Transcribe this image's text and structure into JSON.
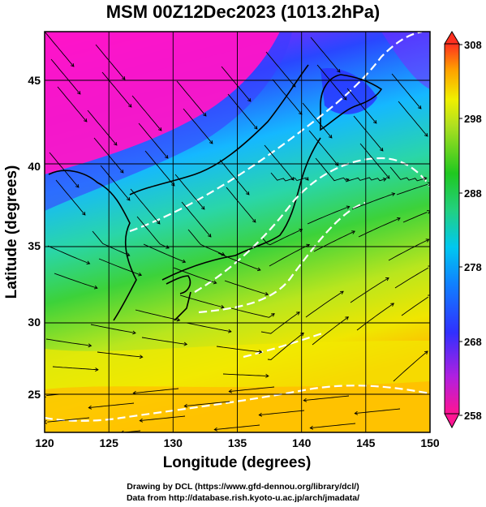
{
  "title": "MSM 00Z12Dec2023 (1013.2hPa)",
  "map": {
    "xlabel": "Longitude (degrees)",
    "ylabel": "Latitude  (degrees)",
    "xticks": [
      "120",
      "125",
      "130",
      "135",
      "140",
      "145",
      "150"
    ],
    "yticks": [
      "25",
      "30",
      "35",
      "40",
      "45"
    ],
    "lon_range": [
      120,
      150
    ],
    "lat_range": [
      22.5,
      47.6
    ]
  },
  "colorbar": {
    "labels": [
      "308",
      "298",
      "288",
      "278",
      "268",
      "258"
    ],
    "range": [
      258,
      308
    ],
    "colors": [
      "#ff1493",
      "#8a2be2",
      "#1e3cff",
      "#00bfff",
      "#20d0a0",
      "#22c522",
      "#a0e020",
      "#f0f000",
      "#ffb000",
      "#ff3020"
    ]
  },
  "footer": {
    "line1": "Drawing by DCL (https://www.gfd-dennou.org/library/dcl/)",
    "line2": "Data from http://database.rish.kyoto-u.ac.jp/arch/jmadata/"
  }
}
